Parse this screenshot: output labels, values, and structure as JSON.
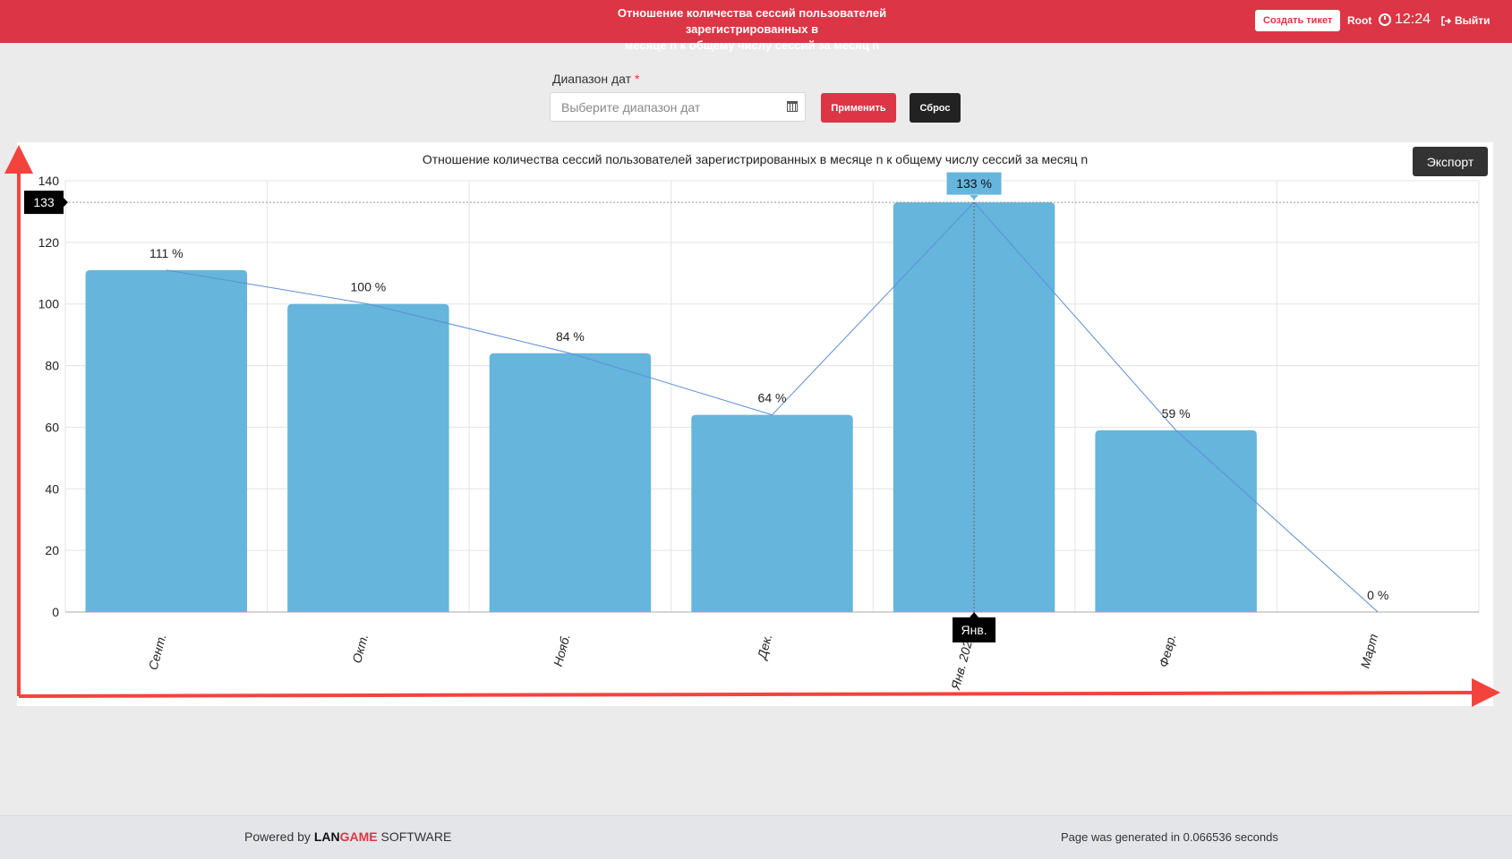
{
  "header": {
    "title_line1": "Отношение количества сессий пользователей зарегистрированных в",
    "title_line2": "месяце n к общему числу сессий за месяц n",
    "ticket_button": "Создать тикет",
    "user": "Root",
    "clock_icon": "clock-icon",
    "time": "12:24",
    "logout_icon": "sign-out-icon",
    "logout": "Выйти"
  },
  "filter": {
    "label": "Диапазон дат",
    "required_mark": "*",
    "placeholder": "Выберите диапазон дат",
    "calendar_icon": "calendar-icon",
    "apply_button": "Применить",
    "reset_button": "Сброс"
  },
  "chart_panel": {
    "export_button": "Экспорт"
  },
  "chart_data": {
    "type": "bar",
    "title": "Отношение количества сессий пользователей зарегистрированных в месяце n к общему числу сессий за месяц n",
    "categories": [
      "Сент.",
      "Окт.",
      "Нояб.",
      "Дек.",
      "Янв. 2026",
      "Февр.",
      "Март"
    ],
    "values": [
      111,
      100,
      84,
      64,
      133,
      59,
      0
    ],
    "value_labels": [
      "111 %",
      "100 %",
      "84 %",
      "64 %",
      "133 %",
      "59 %",
      "0 %"
    ],
    "overlay_line": true,
    "ylim": [
      0,
      140
    ],
    "yticks": [
      0,
      20,
      40,
      60,
      80,
      100,
      120,
      140
    ],
    "grid": true,
    "bar_color": "#66b5dc",
    "crosshair": {
      "category_index": 4,
      "y_value_label": "133",
      "tooltip": "133 %",
      "x_label": "Янв."
    }
  },
  "footer": {
    "powered_prefix": "Powered by",
    "brand_part1": "LAN",
    "brand_part2": "GAME",
    "brand_part3": "SOFTWARE",
    "generated": "Page was generated in 0.066536 seconds"
  },
  "colors": {
    "accent": "#dc3545",
    "annotation_arrow": "#f4433c",
    "dark_button": "#222222"
  }
}
